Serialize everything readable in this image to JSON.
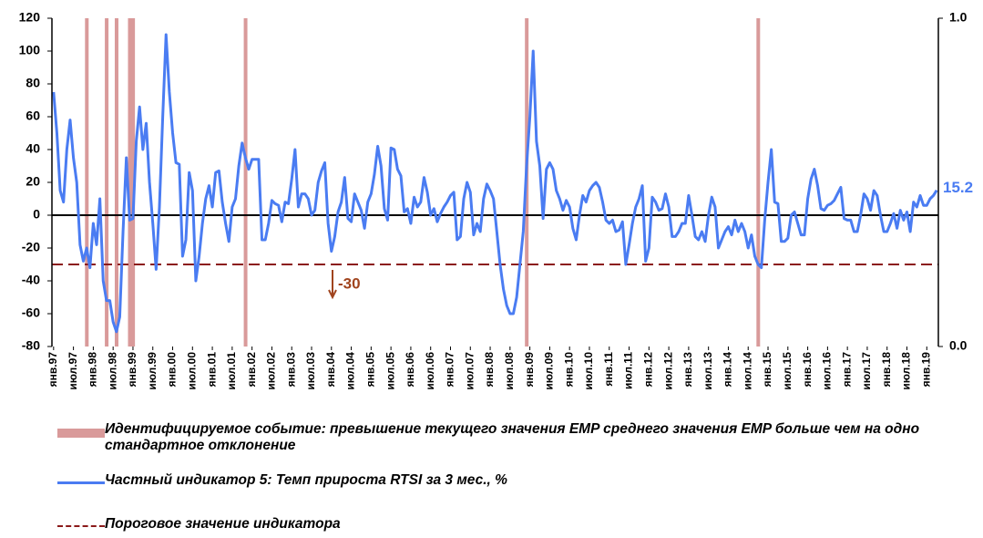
{
  "chart_data": {
    "type": "line",
    "categories": [
      "янв.97",
      null,
      null,
      null,
      null,
      null,
      "июл.97",
      null,
      null,
      null,
      null,
      null,
      "янв.98",
      null,
      null,
      null,
      null,
      null,
      "июл.98",
      null,
      null,
      null,
      null,
      null,
      "янв.99",
      null,
      null,
      null,
      null,
      null,
      "июл.99",
      null,
      null,
      null,
      null,
      null,
      "янв.00",
      null,
      null,
      null,
      null,
      null,
      "июл.00",
      null,
      null,
      null,
      null,
      null,
      "янв.01",
      null,
      null,
      null,
      null,
      null,
      "июл.01",
      null,
      null,
      null,
      null,
      null,
      "янв.02",
      null,
      null,
      null,
      null,
      null,
      "июл.02",
      null,
      null,
      null,
      null,
      null,
      "янв.03",
      null,
      null,
      null,
      null,
      null,
      "июл.03",
      null,
      null,
      null,
      null,
      null,
      "янв.04",
      null,
      null,
      null,
      null,
      null,
      "июл.04",
      null,
      null,
      null,
      null,
      null,
      "янв.05",
      null,
      null,
      null,
      null,
      null,
      "июл.05",
      null,
      null,
      null,
      null,
      null,
      "янв.06",
      null,
      null,
      null,
      null,
      null,
      "июл.06",
      null,
      null,
      null,
      null,
      null,
      "янв.07",
      null,
      null,
      null,
      null,
      null,
      "июл.07",
      null,
      null,
      null,
      null,
      null,
      "янв.08",
      null,
      null,
      null,
      null,
      null,
      "июл.08",
      null,
      null,
      null,
      null,
      null,
      "янв.09",
      null,
      null,
      null,
      null,
      null,
      "июл.09",
      null,
      null,
      null,
      null,
      null,
      "янв.10",
      null,
      null,
      null,
      null,
      null,
      "июл.10",
      null,
      null,
      null,
      null,
      null,
      "янв.11",
      null,
      null,
      null,
      null,
      null,
      "июл.11",
      null,
      null,
      null,
      null,
      null,
      "янв.12",
      null,
      null,
      null,
      null,
      null,
      "июл.12",
      null,
      null,
      null,
      null,
      null,
      "янв.13",
      null,
      null,
      null,
      null,
      null,
      "июл.13",
      null,
      null,
      null,
      null,
      null,
      "янв.14",
      null,
      null,
      null,
      null,
      null,
      "июл.14",
      null,
      null,
      null,
      null,
      null,
      "янв.15",
      null,
      null,
      null,
      null,
      null,
      "июл.15",
      null,
      null,
      null,
      null,
      null,
      "янв.16",
      null,
      null,
      null,
      null,
      null,
      "июл.16",
      null,
      null,
      null,
      null,
      null,
      "янв.17",
      null,
      null,
      null,
      null,
      null,
      "июл.17",
      null,
      null,
      null,
      null,
      null,
      "янв.18",
      null,
      null,
      null,
      null,
      null,
      "июл.18",
      null,
      null,
      null,
      null,
      null,
      "янв.19",
      null,
      null,
      null
    ],
    "series": [
      {
        "name": "Идентифицируемое событие: превышение текущего значения EMP среднего значения EMP больше чем на одно стандартное отклонение",
        "color": "#d99a9a",
        "axis": "y2",
        "values": [
          0,
          0,
          0,
          0,
          0,
          0,
          0,
          0,
          0,
          0,
          1,
          0,
          0,
          0,
          0,
          0,
          1,
          0,
          0,
          1,
          0,
          0,
          0,
          1,
          1,
          0,
          0,
          0,
          0,
          0,
          0,
          0,
          0,
          0,
          0,
          0,
          0,
          0,
          0,
          0,
          0,
          0,
          0,
          0,
          0,
          0,
          0,
          0,
          0,
          0,
          0,
          0,
          0,
          0,
          0,
          0,
          0,
          0,
          1,
          0,
          0,
          0,
          0,
          0,
          0,
          0,
          0,
          0,
          0,
          0,
          0,
          0,
          0,
          0,
          0,
          0,
          0,
          0,
          0,
          0,
          0,
          0,
          0,
          0,
          0,
          0,
          0,
          0,
          0,
          0,
          0,
          0,
          0,
          0,
          0,
          0,
          0,
          0,
          0,
          0,
          0,
          0,
          0,
          0,
          0,
          0,
          0,
          0,
          0,
          0,
          0,
          0,
          0,
          0,
          0,
          0,
          0,
          0,
          0,
          0,
          0,
          0,
          0,
          0,
          0,
          0,
          0,
          0,
          0,
          0,
          0,
          0,
          0,
          0,
          0,
          0,
          0,
          0,
          0,
          0,
          0,
          0,
          0,
          1,
          0,
          0,
          0,
          0,
          0,
          0,
          0,
          0,
          0,
          0,
          0,
          0,
          0,
          0,
          0,
          0,
          0,
          0,
          0,
          0,
          0,
          0,
          0,
          0,
          0,
          0,
          0,
          0,
          0,
          0,
          0,
          0,
          0,
          0,
          0,
          0,
          0,
          0,
          0,
          0,
          0,
          0,
          0,
          0,
          0,
          0,
          0,
          0,
          0,
          0,
          0,
          0,
          0,
          0,
          0,
          0,
          0,
          0,
          0,
          0,
          0,
          0,
          0,
          0,
          0,
          0,
          0,
          0,
          0,
          1,
          0,
          0,
          0,
          0,
          0,
          0,
          0,
          0,
          0,
          0,
          0,
          0,
          0,
          0,
          0,
          0,
          0,
          0,
          0,
          0,
          0,
          0,
          0,
          0,
          0,
          0,
          0,
          0,
          0,
          0,
          0,
          0,
          0,
          0,
          0,
          0,
          0,
          0,
          0,
          0,
          0,
          0,
          0,
          0,
          0,
          0,
          0,
          0,
          0,
          0,
          0,
          0,
          0,
          0
        ]
      },
      {
        "name": "Частный индикатор 5: Темп прироста RTSI за 3 мес., %",
        "color": "#4a7cf2",
        "values": [
          75,
          50,
          15,
          8,
          40,
          58,
          35,
          20,
          -18,
          -28,
          -20,
          -32,
          -5,
          -18,
          10,
          -40,
          -52,
          -52,
          -65,
          -71,
          -62,
          -10,
          35,
          -3,
          -2,
          45,
          66,
          40,
          56,
          20,
          -5,
          -33,
          5,
          60,
          110,
          75,
          50,
          32,
          31,
          -25,
          -15,
          26,
          15,
          -40,
          -25,
          -5,
          10,
          18,
          5,
          26,
          27,
          8,
          -5,
          -16,
          5,
          10,
          30,
          44,
          35,
          28,
          34,
          34,
          34,
          -15,
          -15,
          -5,
          9,
          7,
          6,
          -4,
          8,
          7,
          22,
          40,
          5,
          13,
          13,
          10,
          0,
          3,
          20,
          27,
          32,
          -5,
          -22,
          -13,
          2,
          8,
          23,
          -2,
          -4,
          13,
          8,
          3,
          -8,
          8,
          13,
          25,
          42,
          30,
          4,
          -3,
          41,
          40,
          28,
          24,
          2,
          4,
          -5,
          11,
          5,
          8,
          23,
          14,
          0,
          4,
          -4,
          1,
          5,
          8,
          12,
          14,
          -15,
          -13,
          10,
          20,
          14,
          -12,
          -5,
          -10,
          10,
          19,
          15,
          10,
          -10,
          -30,
          -45,
          -55,
          -60,
          -60,
          -50,
          -30,
          -10,
          30,
          60,
          100,
          45,
          30,
          -2,
          28,
          32,
          28,
          15,
          10,
          3,
          9,
          5,
          -8,
          -15,
          0,
          12,
          8,
          15,
          18,
          20,
          17,
          8,
          -3,
          -5,
          -3,
          -10,
          -9,
          -4,
          -30,
          -18,
          -5,
          5,
          10,
          18,
          -28,
          -20,
          11,
          8,
          3,
          4,
          13,
          5,
          -13,
          -13,
          -10,
          -5,
          -5,
          12,
          0,
          -13,
          -15,
          -10,
          -16,
          0,
          11,
          5,
          -20,
          -15,
          -10,
          -7,
          -12,
          -3,
          -10,
          -5,
          -10,
          -20,
          -12,
          -25,
          -30,
          -32,
          -3,
          20,
          40,
          8,
          7,
          -16,
          -16,
          -14,
          0,
          2,
          -5,
          -12,
          -12,
          10,
          22,
          28,
          18,
          4,
          3,
          6,
          7,
          9,
          13,
          17,
          -2,
          -3,
          -3,
          -10,
          -10,
          0,
          13,
          10,
          3,
          15,
          12,
          0,
          -10,
          -10,
          -5,
          1,
          -8,
          3,
          -3,
          2,
          -10,
          8,
          5,
          12,
          6,
          6,
          10,
          12,
          15.2
        ]
      }
    ],
    "threshold": {
      "name": "Пороговое значение индикатора",
      "color": "#8b1a1a",
      "value": -30,
      "annotation_color": "#a0441e"
    },
    "ylim": [
      -80,
      120
    ],
    "yticks": [
      -80,
      -60,
      -40,
      -20,
      0,
      20,
      40,
      60,
      80,
      100,
      120
    ],
    "y2lim": [
      0,
      1
    ],
    "y2ticks": [
      {
        "value": 0,
        "label": "0.0"
      },
      {
        "value": 1,
        "label": "1.0"
      }
    ],
    "grid": false,
    "legend": "bottom"
  }
}
